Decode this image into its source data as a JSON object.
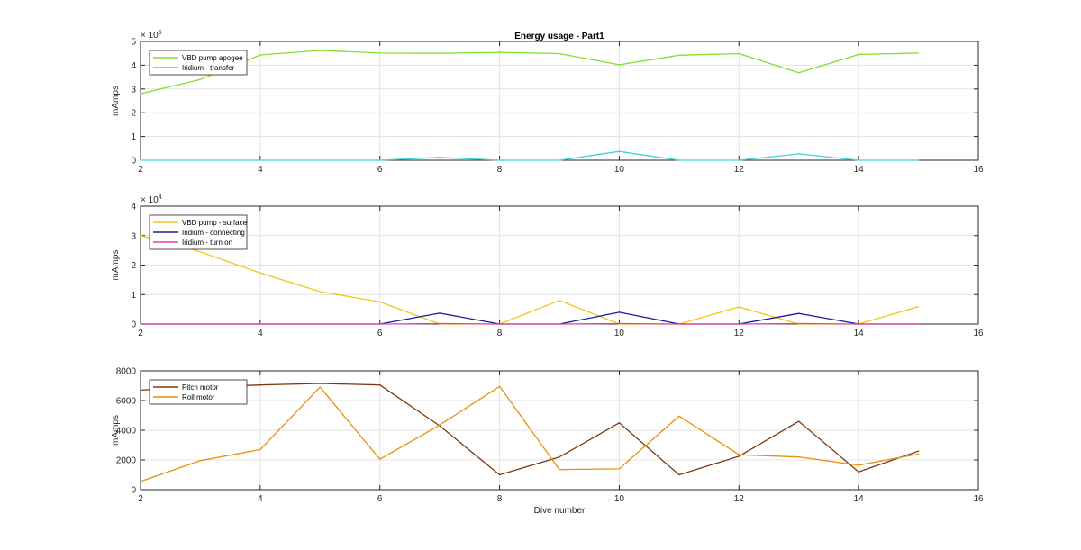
{
  "chart_data": [
    {
      "type": "line",
      "title": "Energy usage - Part1",
      "xlabel": "",
      "ylabel": "mAmps",
      "exponent": "5",
      "xlim": [
        2,
        16
      ],
      "ylim": [
        0,
        500000
      ],
      "x_ticks": [
        "2",
        "4",
        "6",
        "8",
        "10",
        "12",
        "14",
        "16"
      ],
      "y_ticks": [
        "0",
        "1",
        "2",
        "3",
        "4",
        "5"
      ],
      "grid": true,
      "legend_position": "top-left",
      "series": [
        {
          "name": "VBD pump apogee",
          "color": "#7fe02e",
          "x": [
            2,
            3,
            4,
            5,
            6,
            7,
            8,
            9,
            10,
            11,
            12,
            13,
            14,
            15
          ],
          "y": [
            280000,
            340000,
            443000,
            462000,
            451000,
            450000,
            454000,
            449000,
            402000,
            442000,
            449000,
            368000,
            445000,
            451000
          ]
        },
        {
          "name": "Iridium - transfer",
          "color": "#3fd2d8",
          "x": [
            2,
            3,
            4,
            5,
            6,
            7,
            8,
            9,
            10,
            11,
            12,
            13,
            14,
            15
          ],
          "y": [
            0,
            0,
            0,
            0,
            0,
            12000,
            0,
            0,
            37000,
            0,
            0,
            27000,
            0,
            0
          ]
        }
      ]
    },
    {
      "type": "line",
      "title": "",
      "xlabel": "",
      "ylabel": "mAmps",
      "exponent": "4",
      "xlim": [
        2,
        16
      ],
      "ylim": [
        0,
        40000
      ],
      "x_ticks": [
        "2",
        "4",
        "6",
        "8",
        "10",
        "12",
        "14",
        "16"
      ],
      "y_ticks": [
        "0",
        "1",
        "2",
        "3",
        "4"
      ],
      "grid": true,
      "legend_position": "top-left",
      "series": [
        {
          "name": "VBD pump - surface",
          "color": "#f5c518",
          "x": [
            2,
            3,
            4,
            5,
            6,
            7,
            8,
            9,
            10,
            11,
            12,
            13,
            14,
            15
          ],
          "y": [
            30000,
            24500,
            17300,
            11000,
            7500,
            0,
            0,
            8000,
            0,
            0,
            5800,
            0,
            0,
            5900
          ]
        },
        {
          "name": "Iridium - connecting",
          "color": "#1a1aa0",
          "x": [
            2,
            3,
            4,
            5,
            6,
            7,
            8,
            9,
            10,
            11,
            12,
            13,
            14,
            15
          ],
          "y": [
            0,
            0,
            0,
            0,
            0,
            3700,
            0,
            0,
            4000,
            0,
            0,
            3600,
            0,
            0
          ]
        },
        {
          "name": "Iridium - turn on",
          "color": "#e8409a",
          "x": [
            2,
            3,
            4,
            5,
            6,
            7,
            8,
            9,
            10,
            11,
            12,
            13,
            14,
            15
          ],
          "y": [
            0,
            0,
            0,
            0,
            0,
            150,
            0,
            0,
            150,
            0,
            0,
            150,
            0,
            0
          ]
        }
      ]
    },
    {
      "type": "line",
      "title": "",
      "xlabel": "Dive number",
      "ylabel": "mAmps",
      "exponent": "",
      "xlim": [
        2,
        16
      ],
      "ylim": [
        0,
        8000
      ],
      "x_ticks": [
        "2",
        "4",
        "6",
        "8",
        "10",
        "12",
        "14",
        "16"
      ],
      "y_ticks": [
        "0",
        "2000",
        "4000",
        "6000",
        "8000"
      ],
      "grid": true,
      "legend_position": "top-left",
      "series": [
        {
          "name": "Pitch motor",
          "color": "#7a3b12",
          "x": [
            2,
            3,
            4,
            5,
            6,
            7,
            8,
            9,
            10,
            11,
            12,
            13,
            14,
            15
          ],
          "y": [
            6700,
            6900,
            7050,
            7150,
            7050,
            4300,
            1000,
            2200,
            4500,
            1000,
            2250,
            4600,
            1200,
            2600
          ]
        },
        {
          "name": "Roll motor",
          "color": "#e8900c",
          "x": [
            2,
            3,
            4,
            5,
            6,
            7,
            8,
            9,
            10,
            11,
            12,
            13,
            14,
            15
          ],
          "y": [
            550,
            1950,
            2700,
            6900,
            2050,
            4350,
            6950,
            1350,
            1400,
            4950,
            2350,
            2200,
            1650,
            2400
          ]
        }
      ]
    }
  ]
}
